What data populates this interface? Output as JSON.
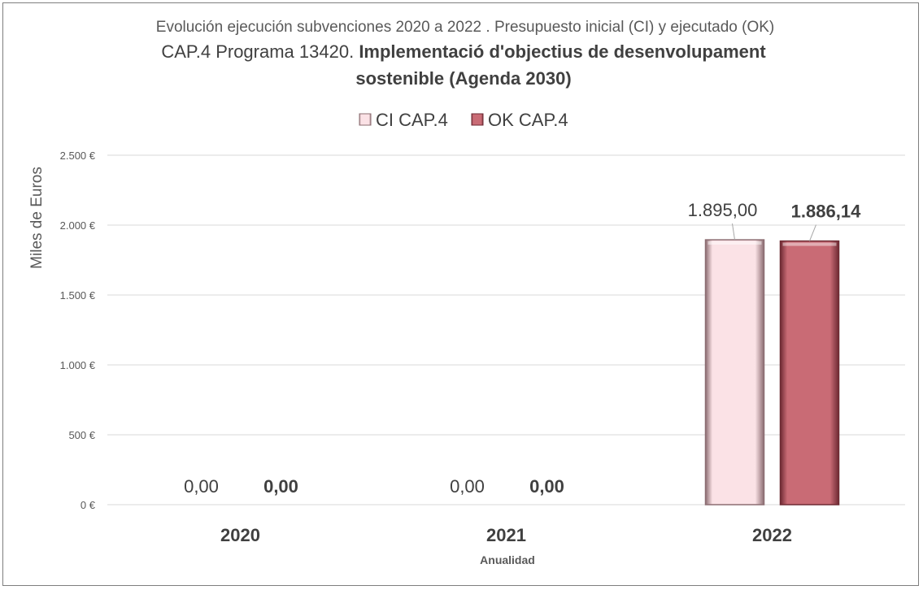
{
  "chart_data": {
    "type": "bar",
    "title_line1": "Evolución ejecución subvenciones  2020 a 2022 . Presupuesto inicial (CI)  y ejecutado (OK)",
    "title_line2_prefix": "CAP.4 Programa 13420.",
    "title_line2_bold": "Implementació d'objectius de desenvolupament",
    "title_line3_bold": "sostenible  (Agenda 2030)",
    "xlabel": "Anualidad",
    "ylabel": "Miles de Euros",
    "categories": [
      "2020",
      "2021",
      "2022"
    ],
    "series": [
      {
        "name": "CI CAP.4",
        "values": [
          0,
          0,
          1895.0
        ],
        "labels": [
          "0,00",
          "0,00",
          "1.895,00"
        ],
        "color": "#fbe2e6",
        "edge": "#8c6d72"
      },
      {
        "name": "OK CAP.4",
        "values": [
          0,
          0,
          1886.14
        ],
        "labels": [
          "0,00",
          "0,00",
          "1.886,14"
        ],
        "color": "#c96b75",
        "edge": "#6e2a33"
      }
    ],
    "ylim": [
      0,
      2500
    ],
    "yticks": [
      0,
      500,
      1000,
      1500,
      2000,
      2500
    ],
    "ytick_labels": [
      "0 €",
      "500 €",
      "1.000 €",
      "1.500 €",
      "2.000 €",
      "2.500 €"
    ],
    "grid": true,
    "legend_position": "top-center"
  }
}
